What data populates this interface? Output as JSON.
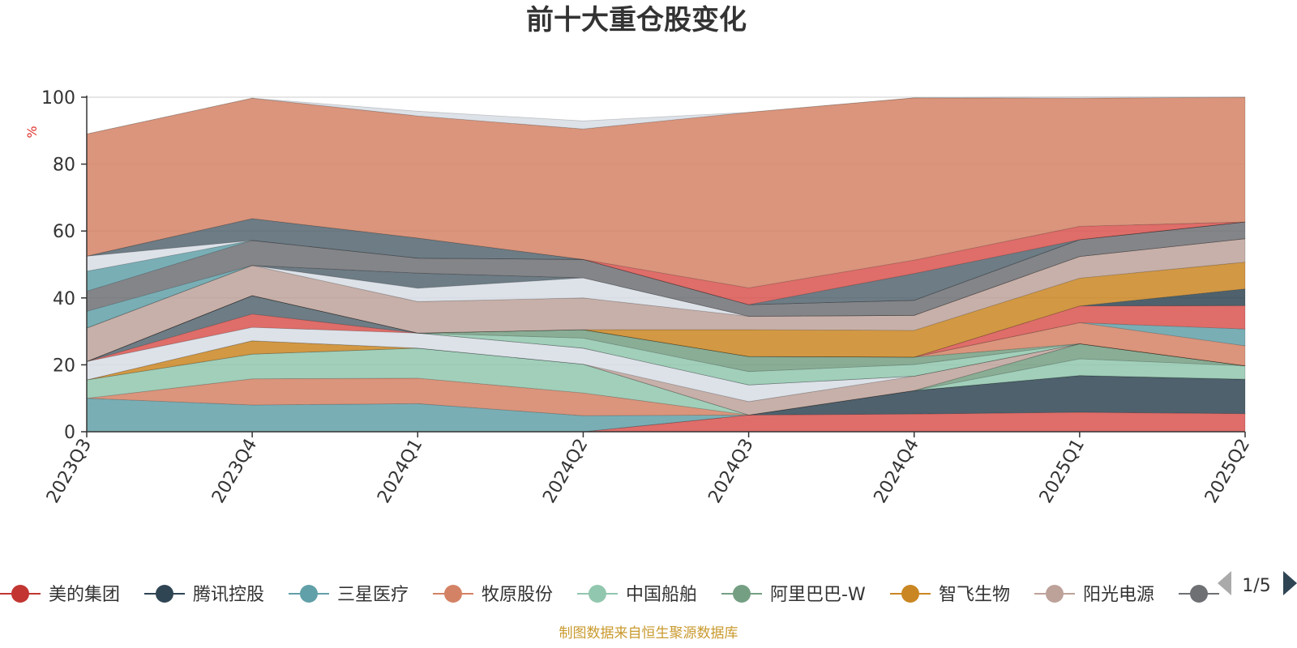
{
  "chart_data": {
    "type": "area",
    "stacked": true,
    "title": "前十大重仓股变化",
    "yunit": "%",
    "ylim": [
      0,
      100
    ],
    "yticks": [
      0,
      20,
      40,
      60,
      80,
      100
    ],
    "grid": true,
    "x": [
      "2023Q3",
      "2023Q4",
      "2024Q1",
      "2024Q2",
      "2024Q3",
      "2024Q4",
      "2025Q1",
      "2025Q2"
    ],
    "series": [
      {
        "name": "美的集团",
        "color": "#d9534f",
        "values": [
          0,
          0,
          0,
          0,
          5,
          5.3,
          5.8,
          5.4
        ]
      },
      {
        "name": "腾讯控股",
        "color": "#2f4554",
        "values": [
          0,
          0,
          0,
          0,
          0,
          7,
          11,
          10.3
        ]
      },
      {
        "name": "三星医疗",
        "color": "#61a0a8",
        "values": [
          10,
          8,
          8.4,
          4.8,
          0,
          0,
          0,
          0
        ]
      },
      {
        "name": "牧原股份",
        "color": "#d48265",
        "values": [
          0,
          7.8,
          7.6,
          6.8,
          0,
          0,
          0,
          0
        ]
      },
      {
        "name": "中国船舶",
        "color": "#91c7ae",
        "values": [
          5.5,
          7.4,
          9,
          8.6,
          0,
          0,
          5,
          4
        ]
      },
      {
        "name": "阿里巴巴-W",
        "color": "#749f83",
        "values": [
          0,
          0,
          0,
          0,
          0,
          0,
          4.5,
          0
        ]
      },
      {
        "name": "智飞生物",
        "color": "#ca8622",
        "values": [
          0,
          4,
          0,
          0,
          0,
          0,
          0,
          0
        ]
      },
      {
        "name": "阳光电源",
        "color": "#bda29a",
        "values": [
          0,
          0,
          0,
          0,
          4,
          4.3,
          0,
          0
        ]
      },
      {
        "name": "",
        "color": "#d7dde5",
        "values": [
          5.5,
          4,
          4.5,
          4.8,
          5,
          0,
          0,
          0
        ]
      },
      {
        "name": "",
        "color": "#d9534f",
        "values": [
          0,
          4,
          0,
          0,
          0,
          0,
          0,
          0
        ]
      },
      {
        "name": "",
        "color": "#546570",
        "values": [
          0,
          5.5,
          0,
          0,
          0,
          0,
          0,
          0
        ]
      },
      {
        "name": "",
        "color": "#91c7ae",
        "values": [
          0,
          0,
          0,
          3,
          4,
          3.5,
          0,
          0
        ]
      },
      {
        "name": "",
        "color": "#749f83",
        "values": [
          0,
          0,
          0,
          2.5,
          4.5,
          2.2,
          0,
          0
        ]
      },
      {
        "name": "",
        "color": "#d48265",
        "values": [
          0,
          0,
          0,
          0,
          0,
          0,
          6.3,
          6
        ]
      },
      {
        "name": "",
        "color": "#61a0a8",
        "values": [
          0,
          0,
          0,
          0,
          0,
          0,
          0,
          5
        ]
      },
      {
        "name": "",
        "color": "#d9534f",
        "values": [
          0,
          0,
          0,
          0,
          0,
          0,
          5,
          7
        ]
      },
      {
        "name": "",
        "color": "#2f4554",
        "values": [
          0,
          0,
          0,
          0,
          0,
          0,
          0,
          5
        ]
      },
      {
        "name": "",
        "color": "#ca8622",
        "values": [
          0,
          0,
          0,
          0,
          8,
          8,
          8.3,
          8
        ]
      },
      {
        "name": "",
        "color": "#bda29a",
        "values": [
          10,
          9,
          9.4,
          9.5,
          4,
          4.5,
          6.5,
          7
        ]
      },
      {
        "name": "",
        "color": "#d7dde5",
        "values": [
          0,
          0,
          4,
          6,
          0,
          0,
          0,
          0
        ]
      },
      {
        "name": "",
        "color": "#546570",
        "values": [
          0,
          0,
          4.5,
          0,
          0,
          0,
          0,
          0
        ]
      },
      {
        "name": "",
        "color": "#61a0a8",
        "values": [
          5,
          0,
          0,
          0,
          0,
          0,
          0,
          0
        ]
      },
      {
        "name": "",
        "color": "#6e7074",
        "values": [
          6,
          7.5,
          4.5,
          5.5,
          3.5,
          4.5,
          5,
          5
        ]
      },
      {
        "name": "",
        "color": "#61a0a8",
        "values": [
          6,
          0,
          0,
          0,
          0,
          0,
          0,
          0
        ]
      },
      {
        "name": "",
        "color": "#d7dde5",
        "values": [
          4.5,
          0,
          0,
          0,
          0,
          0,
          0,
          0
        ]
      },
      {
        "name": "",
        "color": "#546570",
        "values": [
          0,
          6.5,
          6,
          0,
          0,
          8,
          0,
          0
        ]
      },
      {
        "name": "",
        "color": "#d9534f",
        "values": [
          0,
          0,
          0,
          0,
          5,
          4,
          4,
          0
        ]
      },
      {
        "name": "",
        "color": "#d48265",
        "values": [
          36.5,
          36,
          36.5,
          39,
          52.5,
          48.5,
          38.3,
          37.3
        ]
      },
      {
        "name": "",
        "color": "#d7dde5",
        "values": [
          0,
          0,
          1.4,
          2.4,
          0,
          0,
          0.4,
          0
        ]
      }
    ],
    "legend": {
      "position": "bottom",
      "page": "1/5",
      "items": [
        {
          "label": "美的集团",
          "color": "#c23531"
        },
        {
          "label": "腾讯控股",
          "color": "#2f4554"
        },
        {
          "label": "三星医疗",
          "color": "#61a0a8"
        },
        {
          "label": "牧原股份",
          "color": "#d48265"
        },
        {
          "label": "中国船舶",
          "color": "#91c7ae"
        },
        {
          "label": "阿里巴巴-W",
          "color": "#749f83"
        },
        {
          "label": "智飞生物",
          "color": "#ca8622"
        },
        {
          "label": "阳光电源",
          "color": "#bda29a"
        },
        {
          "label": "",
          "color": "#6e7074"
        }
      ]
    },
    "source": "制图数据来自恒生聚源数据库"
  }
}
